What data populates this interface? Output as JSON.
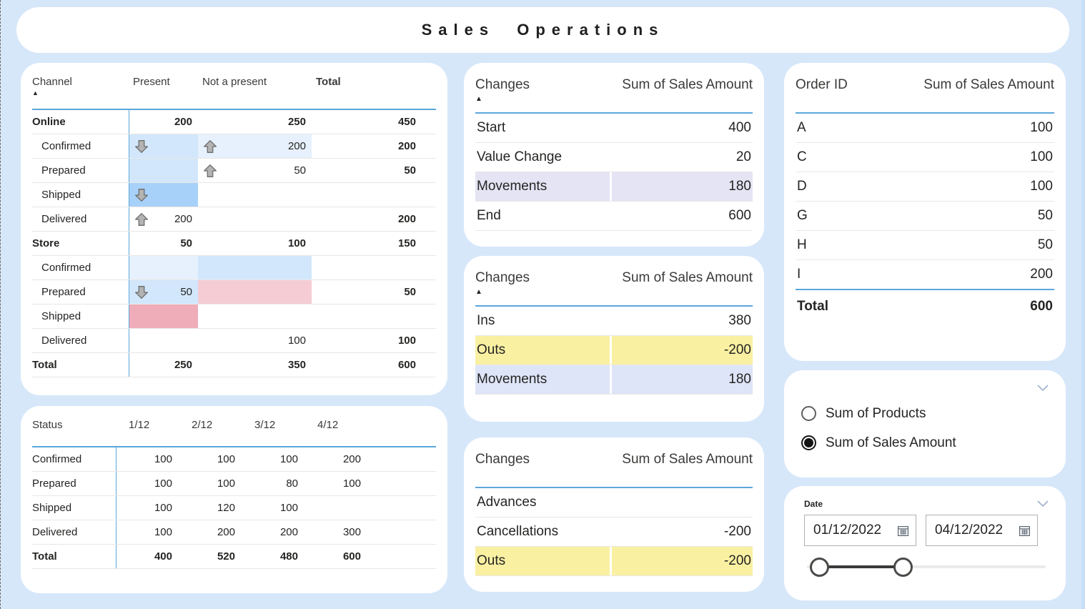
{
  "page": {
    "title": "Sales Operations"
  },
  "colors": {
    "page_bg": "#d7e7fa",
    "accent_line": "#5ba7dc",
    "blue_light": "#d2e7fb",
    "blue_lighter": "#e6f1fd",
    "blue_medium": "#a7d1f8",
    "pink_light": "#f5ccd4",
    "pink_medium": "#efadb9",
    "row_lavender": "#e4e4f4",
    "row_periwinkle": "#dee5f8",
    "row_yellow": "#f9f0a2"
  },
  "icons": {
    "sort_ascending": "triangle-up",
    "cell_increase": "block-arrow-up",
    "cell_decrease": "block-arrow-down",
    "collapse": "chevron-down",
    "calendar": "calendar-grid"
  },
  "channel_matrix": {
    "headers": {
      "row": "Channel",
      "col1": "Present",
      "col2": "Not a present",
      "col3": "Total"
    },
    "sorted": true,
    "rows": [
      {
        "label": "Online",
        "bold": true,
        "cells": [
          {
            "text": "200",
            "bold": true
          },
          {
            "text": "250",
            "bold": true
          },
          {
            "text": "450",
            "bold": true
          }
        ]
      },
      {
        "label": "Confirmed",
        "indent": true,
        "cells": [
          {
            "arrow": "down",
            "bg": "blue_light"
          },
          {
            "arrow": "up",
            "text": "200",
            "bg": "blue_lighter"
          },
          {
            "text": "200",
            "bold": true
          }
        ]
      },
      {
        "label": "Prepared",
        "indent": true,
        "cells": [
          {
            "bg": "blue_light"
          },
          {
            "arrow": "up",
            "text": "50"
          },
          {
            "text": "50",
            "bold": true
          }
        ]
      },
      {
        "label": "Shipped",
        "indent": true,
        "cells": [
          {
            "arrow": "down",
            "bg": "blue_medium"
          },
          {},
          {}
        ]
      },
      {
        "label": "Delivered",
        "indent": true,
        "cells": [
          {
            "arrow": "up",
            "text": "200"
          },
          {},
          {
            "text": "200",
            "bold": true
          }
        ]
      },
      {
        "label": "Store",
        "bold": true,
        "cells": [
          {
            "text": "50",
            "bold": true
          },
          {
            "text": "100",
            "bold": true
          },
          {
            "text": "150",
            "bold": true
          }
        ]
      },
      {
        "label": "Confirmed",
        "indent": true,
        "cells": [
          {
            "bg": "blue_lighter"
          },
          {
            "bg": "blue_light"
          },
          {}
        ]
      },
      {
        "label": "Prepared",
        "indent": true,
        "cells": [
          {
            "arrow": "down",
            "text": "50",
            "bg": "blue_light"
          },
          {
            "bg": "pink_light"
          },
          {
            "text": "50",
            "bold": true
          }
        ]
      },
      {
        "label": "Shipped",
        "indent": true,
        "cells": [
          {
            "bg": "pink_medium"
          },
          {},
          {}
        ]
      },
      {
        "label": "Delivered",
        "indent": true,
        "cells": [
          {},
          {
            "text": "100"
          },
          {
            "text": "100",
            "bold": true
          }
        ]
      },
      {
        "label": "Total",
        "bold": true,
        "cells": [
          {
            "text": "250",
            "bold": true
          },
          {
            "text": "350",
            "bold": true
          },
          {
            "text": "600",
            "bold": true
          }
        ]
      }
    ]
  },
  "status_table": {
    "headers": [
      "Status",
      "1/12",
      "2/12",
      "3/12",
      "4/12"
    ],
    "rows": [
      {
        "label": "Confirmed",
        "values": [
          "100",
          "100",
          "100",
          "200"
        ]
      },
      {
        "label": "Prepared",
        "values": [
          "100",
          "100",
          "80",
          "100"
        ]
      },
      {
        "label": "Shipped",
        "values": [
          "100",
          "120",
          "100",
          ""
        ]
      },
      {
        "label": "Delivered",
        "values": [
          "100",
          "200",
          "200",
          "300"
        ]
      },
      {
        "label": "Total",
        "bold": true,
        "values": [
          "400",
          "520",
          "480",
          "600"
        ]
      }
    ]
  },
  "changes_tables": [
    {
      "col1": "Changes",
      "col2": "Sum of Sales Amount",
      "sorted": true,
      "rows": [
        {
          "label": "Start",
          "value": "400"
        },
        {
          "label": "Value Change",
          "value": "20"
        },
        {
          "label": "Movements",
          "value": "180",
          "bg": "row_lavender"
        },
        {
          "label": "End",
          "value": "600"
        }
      ]
    },
    {
      "col1": "Changes",
      "col2": "Sum of Sales Amount",
      "sorted": true,
      "rows": [
        {
          "label": "Ins",
          "value": "380"
        },
        {
          "label": "Outs",
          "value": "-200",
          "bg": "row_yellow"
        },
        {
          "label": "Movements",
          "value": "180",
          "bg": "row_periwinkle"
        }
      ]
    },
    {
      "col1": "Changes",
      "col2": "Sum of Sales Amount",
      "sorted": false,
      "rows": [
        {
          "label": "Advances",
          "value": ""
        },
        {
          "label": "Cancellations",
          "value": "-200"
        },
        {
          "label": "Outs",
          "value": "-200",
          "bg": "row_yellow"
        }
      ]
    }
  ],
  "order_table": {
    "col1": "Order ID",
    "col2": "Sum of Sales Amount",
    "rows": [
      {
        "label": "A",
        "value": "100"
      },
      {
        "label": "C",
        "value": "100"
      },
      {
        "label": "D",
        "value": "100"
      },
      {
        "label": "G",
        "value": "50"
      },
      {
        "label": "H",
        "value": "50"
      },
      {
        "label": "I",
        "value": "200"
      }
    ],
    "total": {
      "label": "Total",
      "value": "600"
    }
  },
  "metric_selector": {
    "options": [
      {
        "label": "Sum of Products",
        "selected": false
      },
      {
        "label": "Sum of Sales Amount",
        "selected": true
      }
    ]
  },
  "date_slicer": {
    "label": "Date",
    "start": "01/12/2022",
    "end": "04/12/2022"
  }
}
